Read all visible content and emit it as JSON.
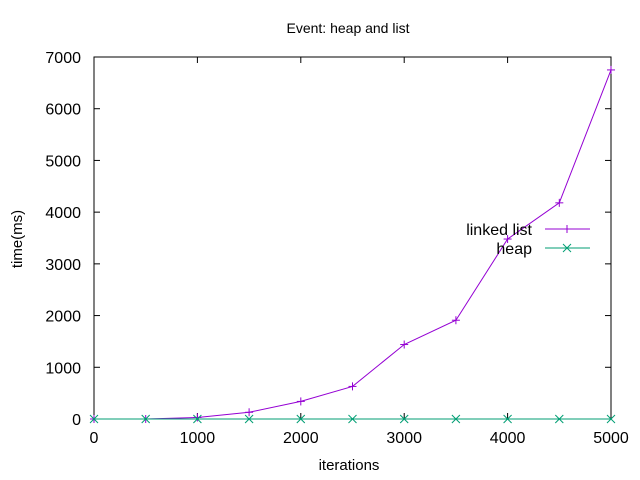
{
  "chart_data": {
    "type": "line",
    "title": "Event: heap and list",
    "xlabel": "iterations",
    "ylabel": "time(ms)",
    "xlim": [
      0,
      5000
    ],
    "ylim": [
      0,
      7000
    ],
    "xticks": [
      0,
      1000,
      2000,
      3000,
      4000,
      5000
    ],
    "yticks": [
      0,
      1000,
      2000,
      3000,
      4000,
      5000,
      6000,
      7000
    ],
    "grid": false,
    "legend_position": "right",
    "series": [
      {
        "name": "linked list",
        "color": "#9400d3",
        "marker": "plus",
        "x": [
          0,
          500,
          1000,
          1500,
          2000,
          2500,
          3000,
          3500,
          4000,
          4500,
          5000
        ],
        "y": [
          0,
          0,
          30,
          130,
          340,
          630,
          1440,
          1910,
          3480,
          4180,
          6750
        ]
      },
      {
        "name": "heap",
        "color": "#009e73",
        "marker": "cross",
        "x": [
          0,
          500,
          1000,
          1500,
          2000,
          2500,
          3000,
          3500,
          4000,
          4500,
          5000
        ],
        "y": [
          0,
          0,
          0,
          0,
          0,
          0,
          0,
          0,
          0,
          0,
          0
        ]
      }
    ]
  }
}
